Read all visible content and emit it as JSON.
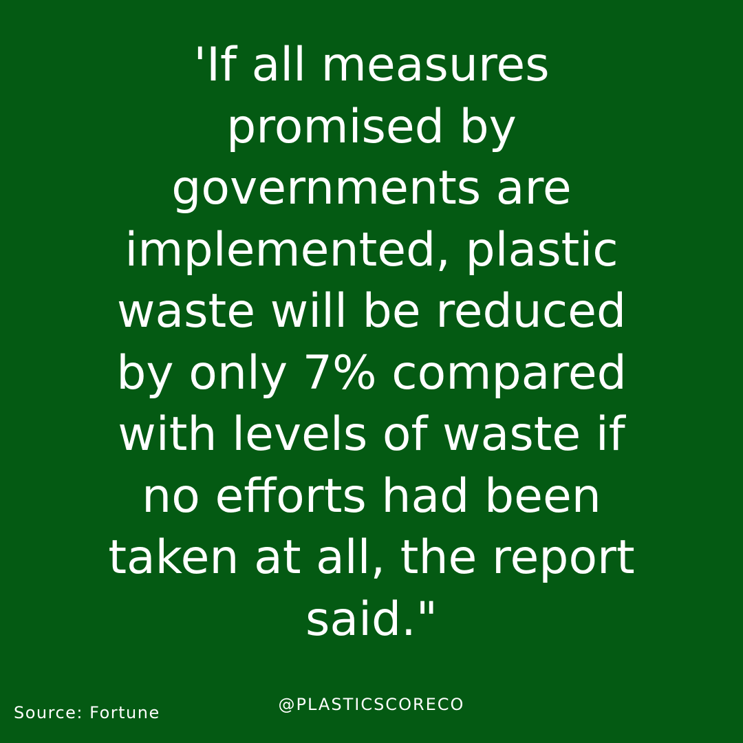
{
  "background_color": "#045a13",
  "text_color": "#ffffff",
  "quote": {
    "lines": [
      "'If all measures",
      "promised by",
      "governments are",
      "implemented, plastic",
      "waste will be reduced",
      "by only 7% compared",
      "with levels of waste if",
      "no efforts had been",
      "taken at all, the report",
      "said.\""
    ]
  },
  "footer": {
    "source": "Source: Fortune",
    "handle": "@PLASTICSCORECO"
  }
}
